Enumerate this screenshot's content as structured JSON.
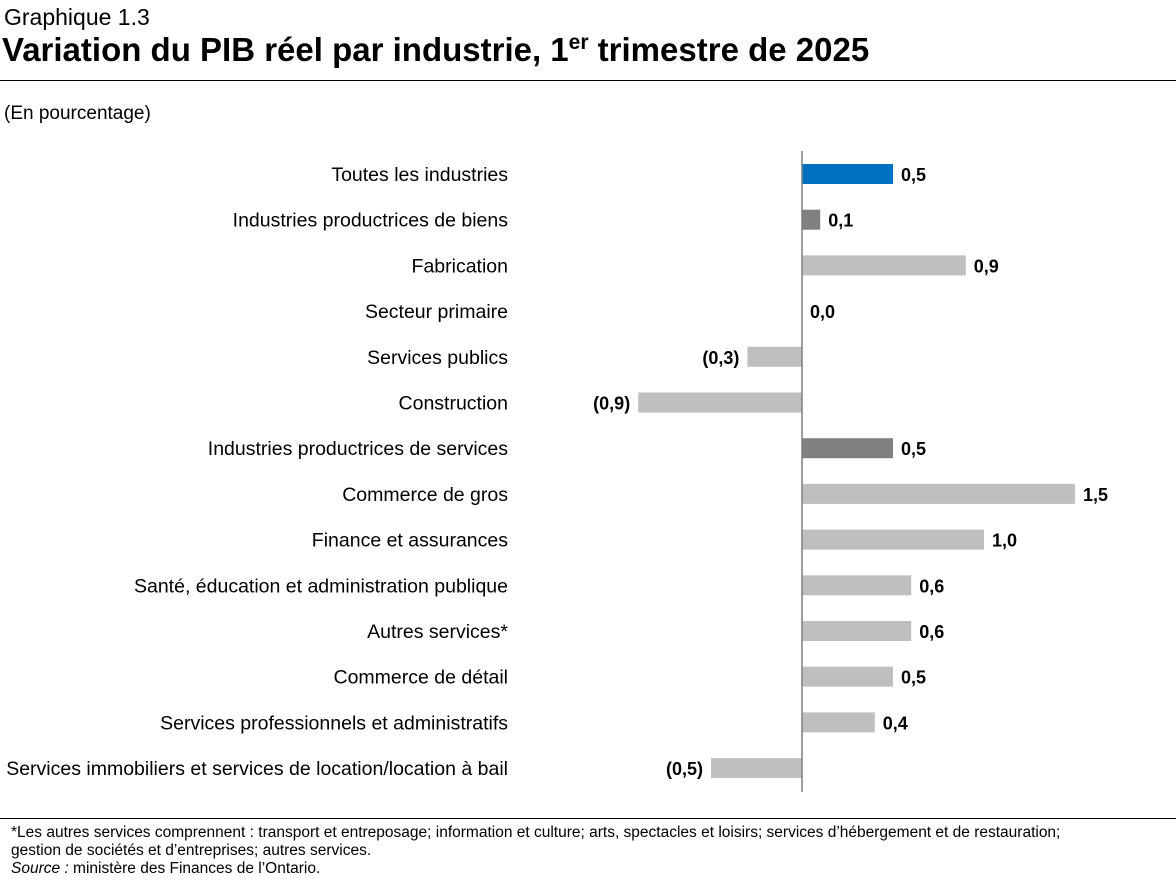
{
  "header": {
    "supertitle": "Graphique 1.3",
    "title_main": "Variation du PIB réel par industrie, 1",
    "title_sup": "er",
    "title_end": " trimestre de 2025",
    "unit": "(En pourcentage)"
  },
  "colors": {
    "total": "#0070c0",
    "subtotal": "#808080",
    "industry": "#bfbfbf",
    "axis": "#7f7f7f"
  },
  "chart_data": {
    "type": "bar",
    "orientation": "horizontal",
    "title": "Variation du PIB réel par industrie, 1er trimestre de 2025",
    "ylabel": "(En pourcentage)",
    "categories": [
      "Toutes les industries",
      "Industries productrices de biens",
      "Fabrication",
      "Secteur primaire",
      "Services publics",
      "Construction",
      "Industries productrices de services",
      "Commerce de gros",
      "Finance et assurances",
      "Santé, éducation et administration publique",
      "Autres services*",
      "Commerce de détail",
      "Services professionnels et administratifs",
      "Services immobiliers et services de location/location à bail"
    ],
    "values": [
      0.5,
      0.1,
      0.9,
      0.0,
      -0.3,
      -0.9,
      0.5,
      1.5,
      1.0,
      0.6,
      0.6,
      0.5,
      0.4,
      -0.5
    ],
    "labels": [
      "0,5",
      "0,1",
      "0,9",
      "0,0",
      "(0,3)",
      "(0,9)",
      "0,5",
      "1,5",
      "1,0",
      "0,6",
      "0,6",
      "0,5",
      "0,4",
      "(0,5)"
    ],
    "bar_kind": [
      "total",
      "subtotal",
      "industry",
      "industry",
      "industry",
      "industry",
      "subtotal",
      "industry",
      "industry",
      "industry",
      "industry",
      "industry",
      "industry",
      "industry"
    ],
    "xlim": [
      -1.0,
      1.5
    ],
    "grid": false,
    "legend": "none"
  },
  "footer": {
    "note_line1": "*Les autres services comprennent : transport et entreposage; information et culture; arts, spectacles et loisirs; services d’hébergement et de restauration;",
    "note_line2": "gestion de sociétés et d’entreprises; autres services.",
    "source_label": "Source :",
    "source_text": " ministère des Finances de l’Ontario."
  }
}
